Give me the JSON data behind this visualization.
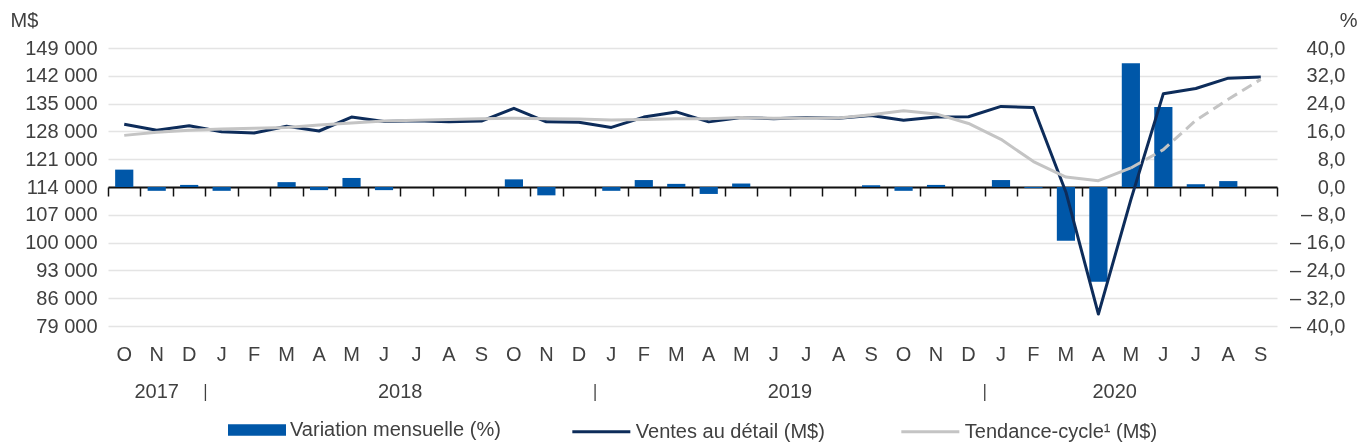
{
  "chart_data": {
    "type": "bar",
    "categories": [
      "O",
      "N",
      "D",
      "J",
      "F",
      "M",
      "A",
      "M",
      "J",
      "J",
      "A",
      "S",
      "O",
      "N",
      "D",
      "J",
      "F",
      "M",
      "A",
      "M",
      "J",
      "J",
      "A",
      "S",
      "O",
      "N",
      "D",
      "J",
      "F",
      "M",
      "A",
      "M",
      "J",
      "J",
      "A",
      "S"
    ],
    "ylabel": "M$",
    "y2label": "%",
    "ylim": [
      79000,
      149000
    ],
    "yticks": [
      {
        "value": 79000,
        "label": "79 000"
      },
      {
        "value": 86000,
        "label": "86 000"
      },
      {
        "value": 93000,
        "label": "93 000"
      },
      {
        "value": 100000,
        "label": "100 000"
      },
      {
        "value": 107000,
        "label": "107 000"
      },
      {
        "value": 114000,
        "label": "114 000"
      },
      {
        "value": 121000,
        "label": "121 000"
      },
      {
        "value": 128000,
        "label": "128 000"
      },
      {
        "value": 135000,
        "label": "135 000"
      },
      {
        "value": 142000,
        "label": "142 000"
      },
      {
        "value": 149000,
        "label": "149 000"
      }
    ],
    "y2lim": [
      -40,
      40
    ],
    "y2ticks": [
      {
        "value": -40,
        "label": "– 40,0"
      },
      {
        "value": -32,
        "label": "– 32,0"
      },
      {
        "value": -24,
        "label": "– 24,0"
      },
      {
        "value": -16,
        "label": "– 16,0"
      },
      {
        "value": -8,
        "label": "– 8,0"
      },
      {
        "value": 0,
        "label": "0,0"
      },
      {
        "value": 8,
        "label": "8,0"
      },
      {
        "value": 16,
        "label": "16,0"
      },
      {
        "value": 24,
        "label": "24,0"
      },
      {
        "value": 32,
        "label": "32,0"
      },
      {
        "value": 40,
        "label": "40,0"
      }
    ],
    "series": [
      {
        "name": "Variation mensuelle (%)",
        "axis": "y2",
        "color": "#0057a8",
        "values": [
          5.0,
          -1.1,
          0.6,
          -1.1,
          null,
          1.4,
          -0.9,
          2.6,
          -0.9,
          null,
          null,
          null,
          2.2,
          -2.4,
          null,
          -1.1,
          2.0,
          0.9,
          -2.0,
          1.0,
          null,
          null,
          null,
          0.5,
          -1.1,
          0.6,
          null,
          2.0,
          -0.3,
          -15.5,
          -27.3,
          35.6,
          23.0,
          0.8,
          1.7,
          null
        ]
      },
      {
        "name": "Ventes au détail (M$)",
        "type": "line",
        "color": "#0d2c5a",
        "values": [
          129800,
          128300,
          129400,
          127900,
          127600,
          129300,
          128100,
          131600,
          130500,
          130700,
          130400,
          130600,
          133800,
          130400,
          130300,
          129000,
          131600,
          132900,
          130400,
          131500,
          131200,
          131500,
          131300,
          132000,
          130800,
          131600,
          131700,
          134300,
          134000,
          112700,
          82000,
          110800,
          137500,
          138800,
          141400,
          141700
        ]
      },
      {
        "name": "Tendance-cycle¹ (M$)",
        "type": "line",
        "color": "#c4c4c4",
        "values": [
          127000,
          127800,
          128300,
          128600,
          128800,
          129000,
          129600,
          130100,
          130600,
          130800,
          131000,
          131200,
          131300,
          131200,
          131100,
          130900,
          131000,
          131200,
          131200,
          131500,
          131300,
          131400,
          131400,
          132200,
          133200,
          132400,
          130000,
          126000,
          120400,
          116500,
          115600,
          118800,
          null,
          null,
          null,
          null
        ]
      },
      {
        "type": "line",
        "color": "#c4c4c4",
        "line_style": "dashed",
        "values": [
          null,
          null,
          null,
          null,
          null,
          null,
          null,
          null,
          null,
          null,
          null,
          null,
          null,
          null,
          null,
          null,
          null,
          null,
          null,
          null,
          null,
          null,
          null,
          null,
          null,
          null,
          null,
          null,
          null,
          null,
          null,
          118800,
          123400,
          130800,
          136100,
          141100
        ]
      }
    ],
    "annotations": [
      "2017",
      "2018",
      "2019",
      "2020"
    ],
    "grid": "y",
    "legend": "bottom"
  }
}
